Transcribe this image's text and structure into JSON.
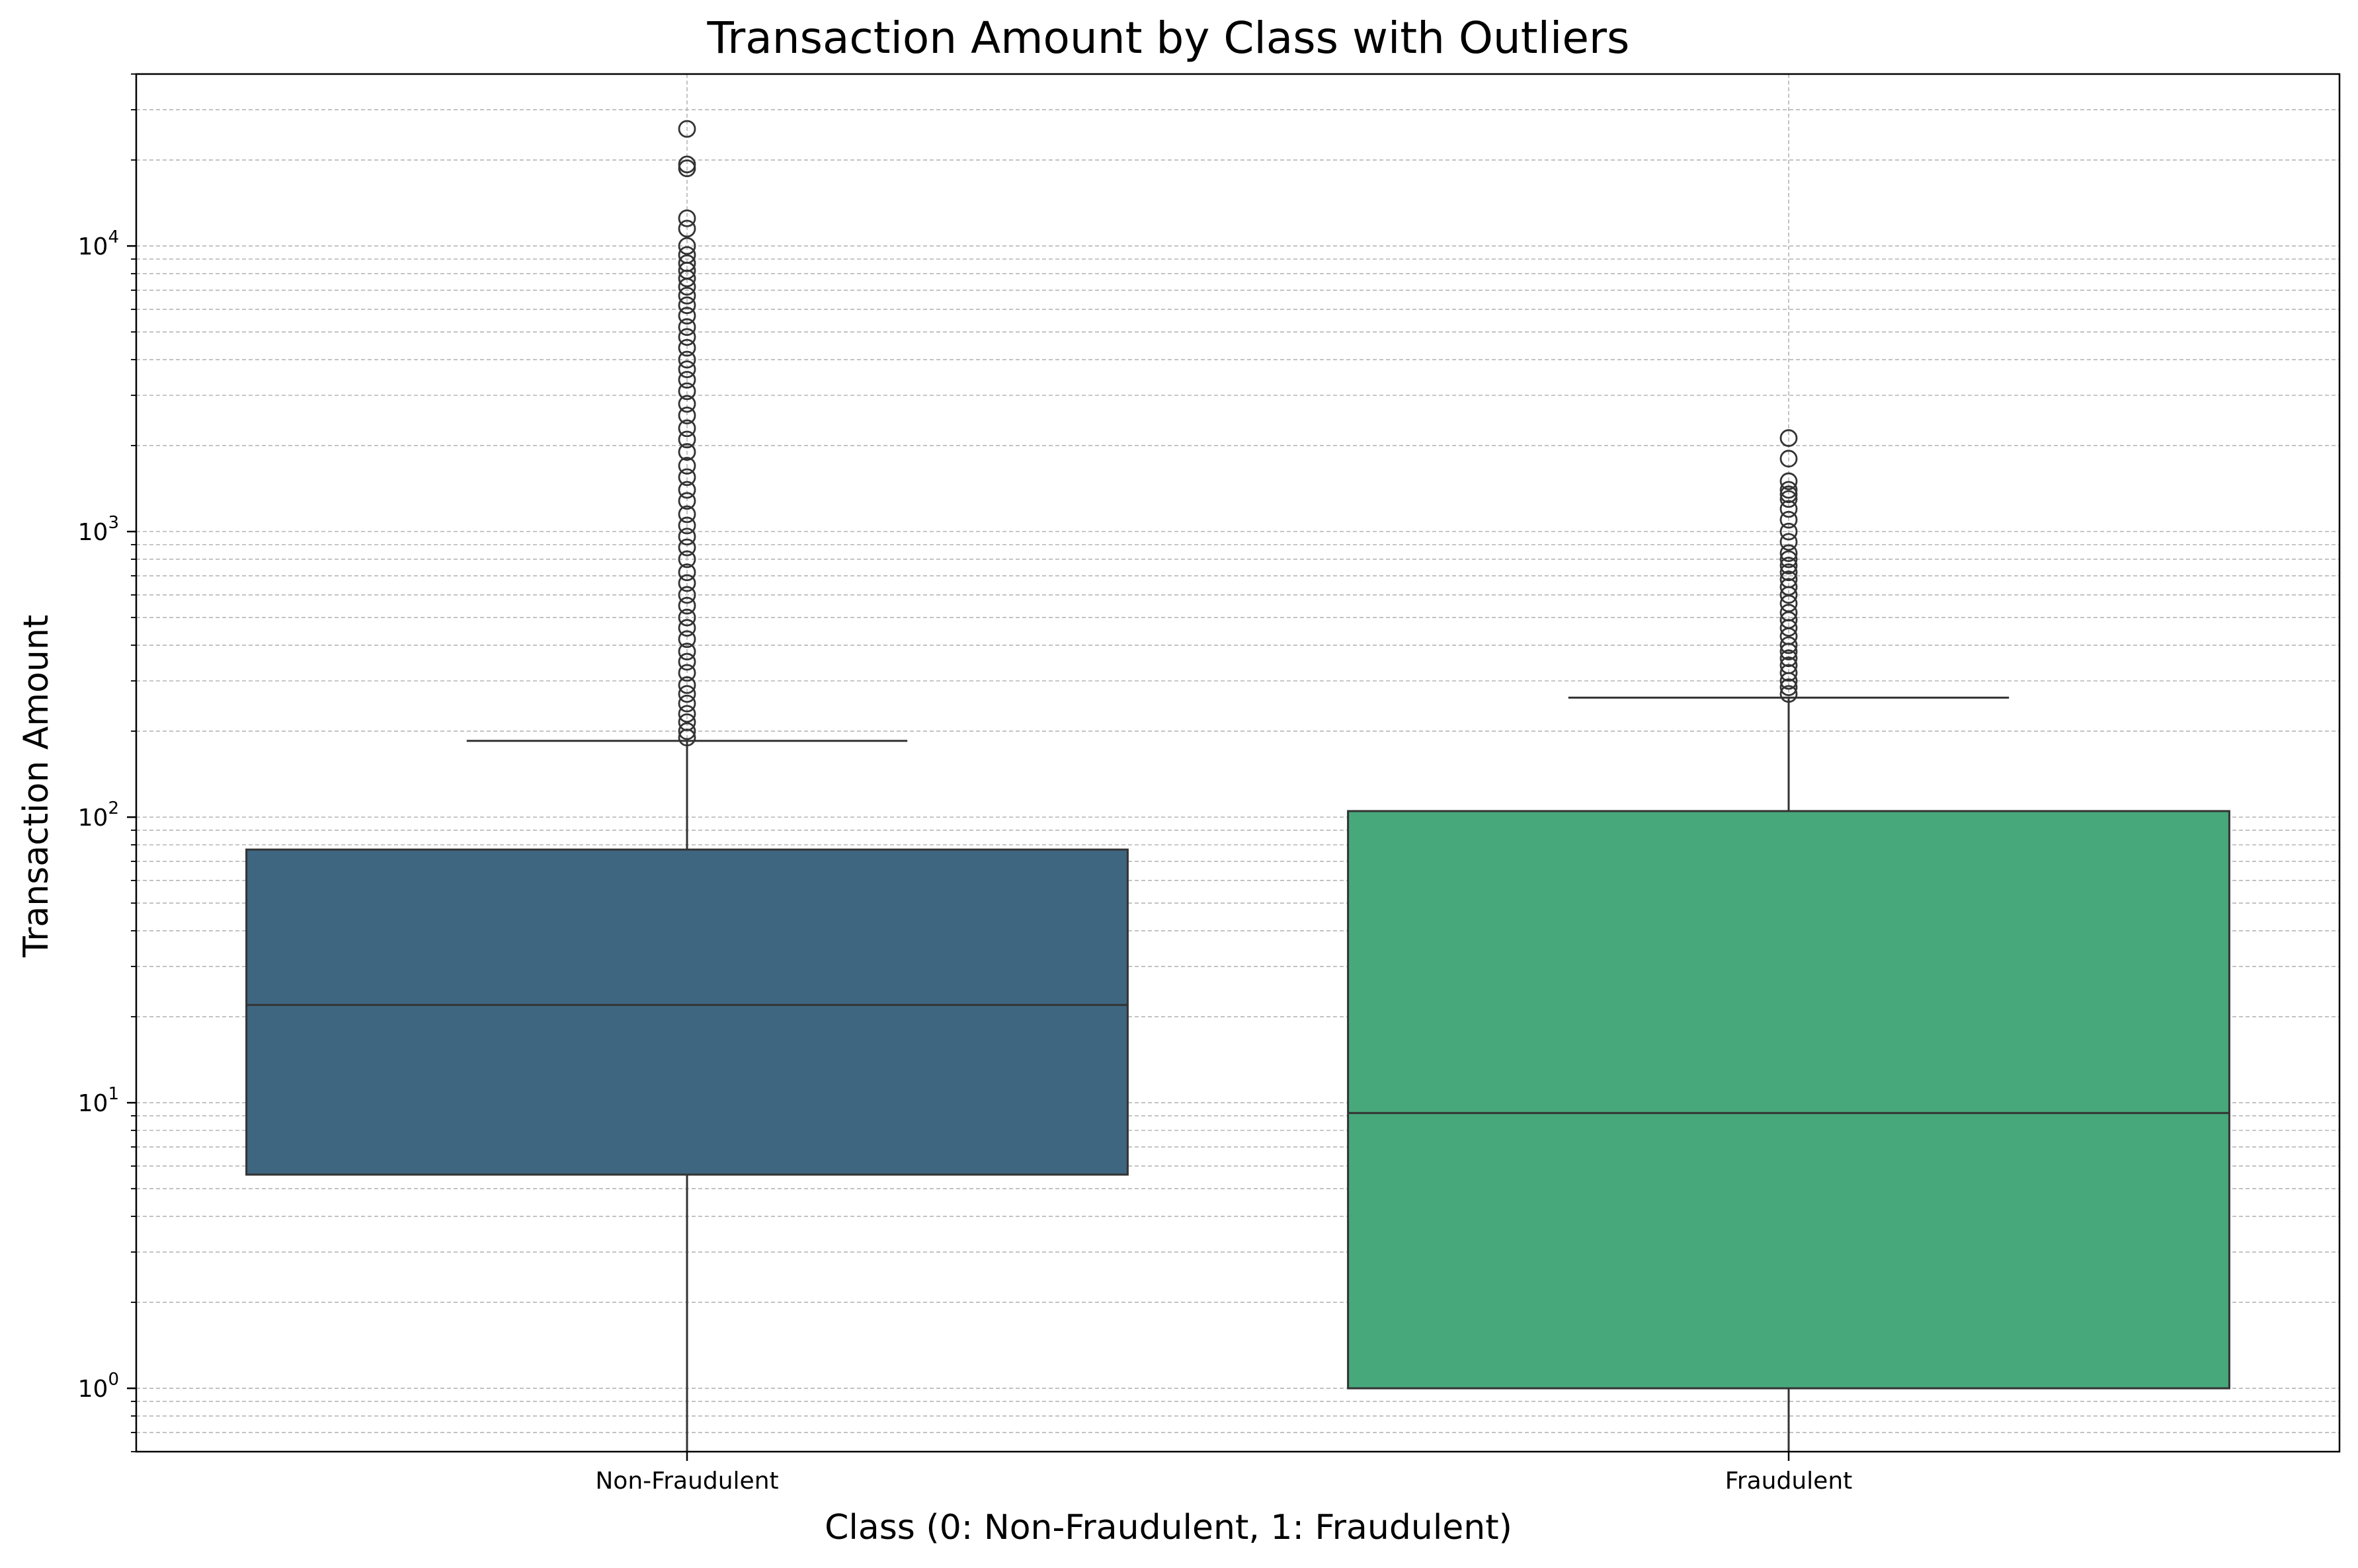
{
  "chart_data": {
    "type": "box",
    "title": "Transaction Amount by Class with Outliers",
    "xlabel": "Class (0: Non-Fraudulent, 1: Fraudulent)",
    "ylabel": "Transaction Amount",
    "yscale": "log",
    "ylim": [
      0.6,
      40000
    ],
    "y_ticks": [
      {
        "value": 1,
        "base": "10",
        "exp": "0"
      },
      {
        "value": 10,
        "base": "10",
        "exp": "1"
      },
      {
        "value": 100,
        "base": "10",
        "exp": "2"
      },
      {
        "value": 1000,
        "base": "10",
        "exp": "3"
      },
      {
        "value": 10000,
        "base": "10",
        "exp": "4"
      }
    ],
    "grid": true,
    "categories": [
      "Non-Fraudulent",
      "Fraudulent"
    ],
    "boxes": [
      {
        "category": "Non-Fraudulent",
        "color": "#3e6680",
        "whisker_low": 0.6,
        "q1": 5.6,
        "median": 22,
        "q3": 77,
        "whisker_high": 185,
        "outliers": [
          190,
          200,
          215,
          230,
          250,
          270,
          290,
          320,
          350,
          380,
          420,
          460,
          500,
          550,
          600,
          660,
          720,
          800,
          880,
          960,
          1050,
          1150,
          1280,
          1400,
          1550,
          1700,
          1900,
          2100,
          2300,
          2550,
          2800,
          3100,
          3400,
          3700,
          4000,
          4400,
          4800,
          5200,
          5700,
          6200,
          6700,
          7200,
          7700,
          8200,
          8700,
          9300,
          10000,
          11500,
          12500,
          18700,
          19300,
          25700
        ]
      },
      {
        "category": "Fraudulent",
        "color": "#47a87b",
        "whisker_low": 0.6,
        "q1": 1.0,
        "median": 9.2,
        "q3": 105,
        "whisker_high": 262,
        "outliers": [
          270,
          285,
          300,
          320,
          340,
          360,
          380,
          400,
          430,
          460,
          490,
          520,
          560,
          600,
          640,
          680,
          720,
          760,
          800,
          840,
          920,
          1000,
          1100,
          1200,
          1300,
          1350,
          1400,
          1500,
          1800,
          2125
        ]
      }
    ]
  }
}
